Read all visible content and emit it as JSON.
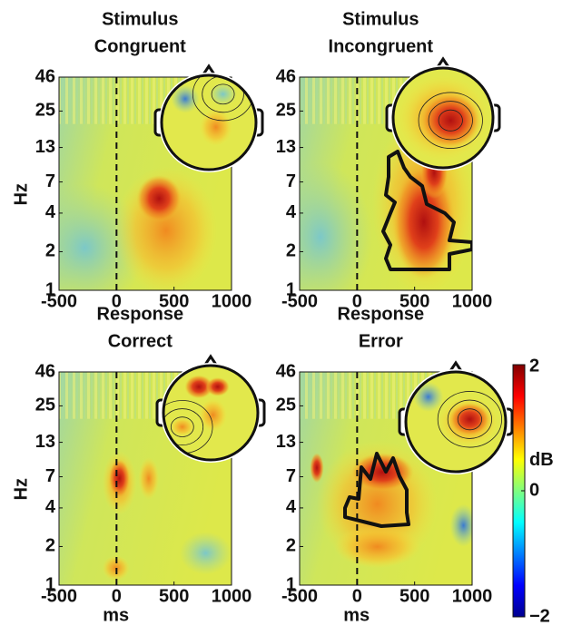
{
  "chart_data": [
    {
      "type": "heatmap",
      "title": [
        "Stimulus",
        "Congruent"
      ],
      "ylabel": "Hz",
      "yscale": "log",
      "xlim": [
        -500,
        1000
      ],
      "xticks": [
        -500,
        0,
        500,
        1000
      ],
      "ylim": [
        1,
        46
      ],
      "yticks": [
        1,
        2,
        4,
        7,
        13,
        25,
        46
      ]
    },
    {
      "type": "heatmap",
      "title": [
        "Stimulus",
        "Incongruent"
      ],
      "yscale": "log",
      "xlim": [
        -500,
        1000
      ],
      "xticks": [
        -500,
        0,
        500,
        1000
      ],
      "ylim": [
        1,
        46
      ],
      "yticks": [
        1,
        2,
        4,
        7,
        13,
        25,
        46
      ]
    },
    {
      "type": "heatmap",
      "title": [
        "Response",
        "Correct"
      ],
      "ylabel": "Hz",
      "xlabel": "ms",
      "yscale": "log",
      "xlim": [
        -500,
        1000
      ],
      "xticks": [
        -500,
        0,
        500,
        1000
      ],
      "ylim": [
        1,
        46
      ],
      "yticks": [
        1,
        2,
        4,
        7,
        13,
        25,
        46
      ]
    },
    {
      "type": "heatmap",
      "title": [
        "Response",
        "Error"
      ],
      "xlabel": "ms",
      "yscale": "log",
      "xlim": [
        -500,
        1000
      ],
      "xticks": [
        -500,
        0,
        500,
        1000
      ],
      "ylim": [
        1,
        46
      ],
      "yticks": [
        1,
        2,
        4,
        7,
        13,
        25,
        46
      ]
    }
  ],
  "colorbar": {
    "label": "dB",
    "clim": [
      -2,
      2
    ],
    "cticks": [
      {
        "value": -2,
        "label": "−2"
      },
      0,
      2
    ]
  }
}
